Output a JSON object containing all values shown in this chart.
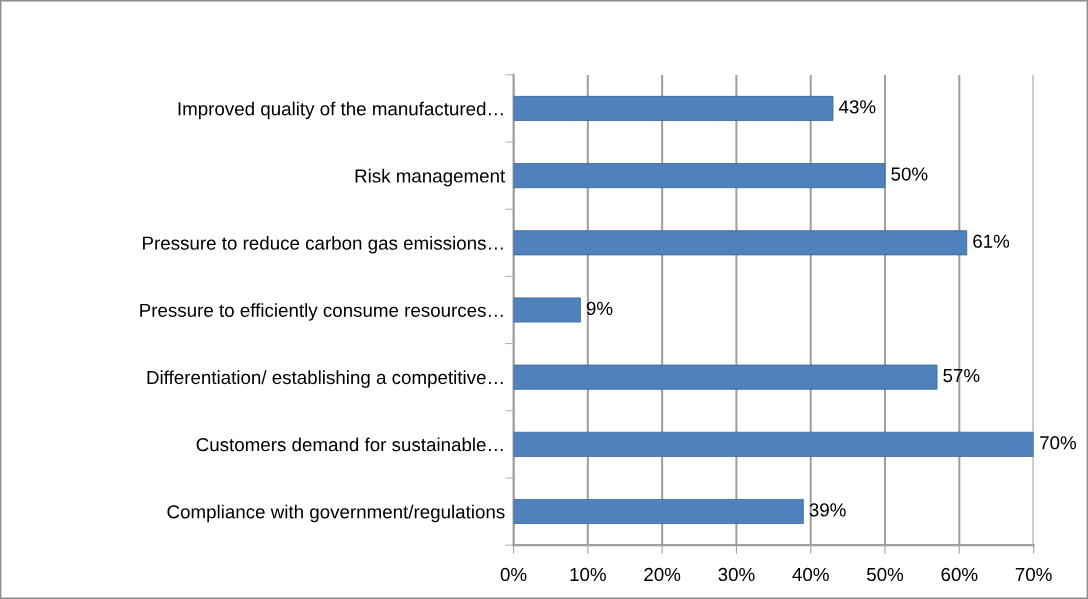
{
  "chart_data": {
    "type": "bar",
    "orientation": "horizontal",
    "categories": [
      "Improved quality of the manufactured…",
      "Risk management",
      "Pressure to reduce carbon gas emissions…",
      "Pressure to efficiently consume resources…",
      "Differentiation/ establishing a competitive…",
      "Customers demand for sustainable…",
      "Compliance with government/regulations"
    ],
    "values": [
      43,
      50,
      61,
      9,
      57,
      70,
      39
    ],
    "color": "#4f81bd",
    "value_labels": [
      "43%",
      "50%",
      "61%",
      "9%",
      "57%",
      "70%",
      "39%"
    ],
    "xlim": [
      0,
      70
    ],
    "xticks": [
      {
        "value": 0,
        "label": "0%"
      },
      {
        "value": 10,
        "label": "10%"
      },
      {
        "value": 20,
        "label": "20%"
      },
      {
        "value": 30,
        "label": "30%"
      },
      {
        "value": 40,
        "label": "40%"
      },
      {
        "value": 50,
        "label": "50%"
      },
      {
        "value": 60,
        "label": "60%"
      },
      {
        "value": 70,
        "label": "70%"
      }
    ],
    "grid": "x",
    "legend": false
  }
}
